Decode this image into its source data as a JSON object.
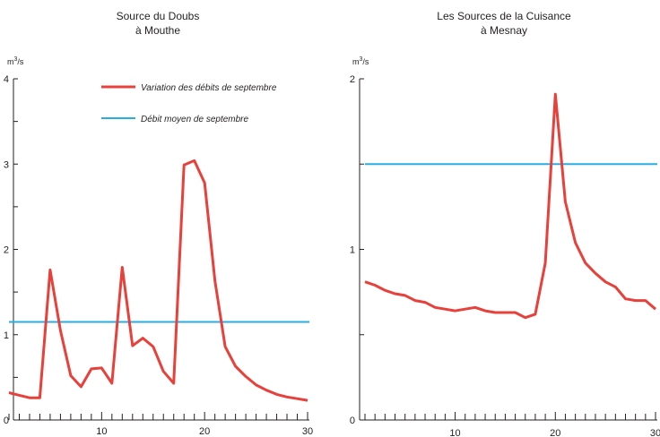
{
  "legend": {
    "variation_label": "Variation des débits de septembre",
    "mean_label": "Débit moyen de septembre",
    "variation_color": "#e8403a",
    "mean_color": "#29aee3"
  },
  "chart_data": [
    {
      "type": "line",
      "title": "Source du Doubs",
      "subtitle": "à Mouthe",
      "ylabel_unit": "m",
      "ylabel_exp": "3",
      "ylabel_tail": "/s",
      "xlim": [
        1,
        30
      ],
      "ylim": [
        0,
        4
      ],
      "xticks": [
        10,
        20,
        30
      ],
      "yticks": [
        0,
        1,
        2,
        3,
        4
      ],
      "series": [
        {
          "x": [
            1,
            2,
            3,
            4,
            5,
            6,
            7,
            8,
            9,
            10,
            11,
            12,
            13,
            14,
            15,
            16,
            17,
            18,
            19,
            20,
            21,
            22,
            23,
            24,
            25,
            26,
            27,
            28,
            29,
            30
          ],
          "values": [
            0.32,
            0.29,
            0.26,
            0.26,
            1.76,
            1.05,
            0.52,
            0.39,
            0.6,
            0.61,
            0.43,
            1.79,
            0.87,
            0.96,
            0.86,
            0.57,
            0.43,
            2.99,
            3.04,
            2.78,
            1.63,
            0.86,
            0.63,
            0.51,
            0.41,
            0.35,
            0.3,
            0.27,
            0.25,
            0.23
          ]
        }
      ],
      "mean": 1.15
    },
    {
      "type": "line",
      "title": "Les Sources de la Cuisance",
      "subtitle": "à Mesnay",
      "ylabel_unit": "m",
      "ylabel_exp": "3",
      "ylabel_tail": "/s",
      "xlim": [
        1,
        30
      ],
      "ylim": [
        0,
        2
      ],
      "xticks": [
        10,
        20,
        30
      ],
      "yticks": [
        0,
        1,
        2
      ],
      "series": [
        {
          "x": [
            1,
            2,
            3,
            4,
            5,
            6,
            7,
            8,
            9,
            10,
            11,
            12,
            13,
            14,
            15,
            16,
            17,
            18,
            19,
            20,
            21,
            22,
            23,
            24,
            25,
            26,
            27,
            28,
            29,
            30
          ],
          "values": [
            0.81,
            0.79,
            0.76,
            0.74,
            0.73,
            0.7,
            0.69,
            0.66,
            0.65,
            0.64,
            0.65,
            0.66,
            0.64,
            0.63,
            0.63,
            0.63,
            0.6,
            0.62,
            0.92,
            1.91,
            1.28,
            1.04,
            0.92,
            0.86,
            0.81,
            0.78,
            0.71,
            0.7,
            0.7,
            0.65
          ]
        }
      ],
      "mean": 1.5
    }
  ]
}
